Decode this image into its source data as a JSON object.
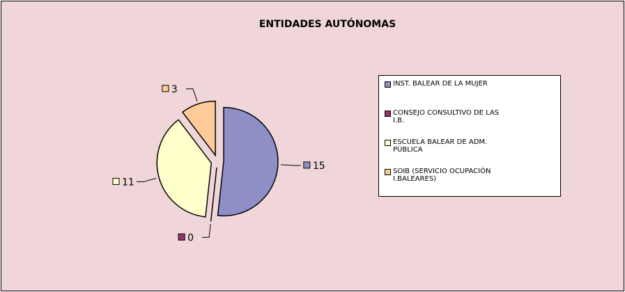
{
  "chart_data": {
    "type": "pie",
    "title": "ENTIDADES AUTÓNOMAS",
    "categories": [
      "INST. BALEAR DE LA MUJER",
      "CONSEJO CONSULTIVO DE LAS I.B.",
      "ESCUELA BALEAR DE ADM. PÚBLICA",
      "SOIB (SERVICIO OCUPACIÓN I.BALEARES)"
    ],
    "values": [
      15,
      0,
      11,
      3
    ],
    "colors": [
      "#8f8fc8",
      "#993366",
      "#ffffcc",
      "#ffcc99"
    ]
  }
}
